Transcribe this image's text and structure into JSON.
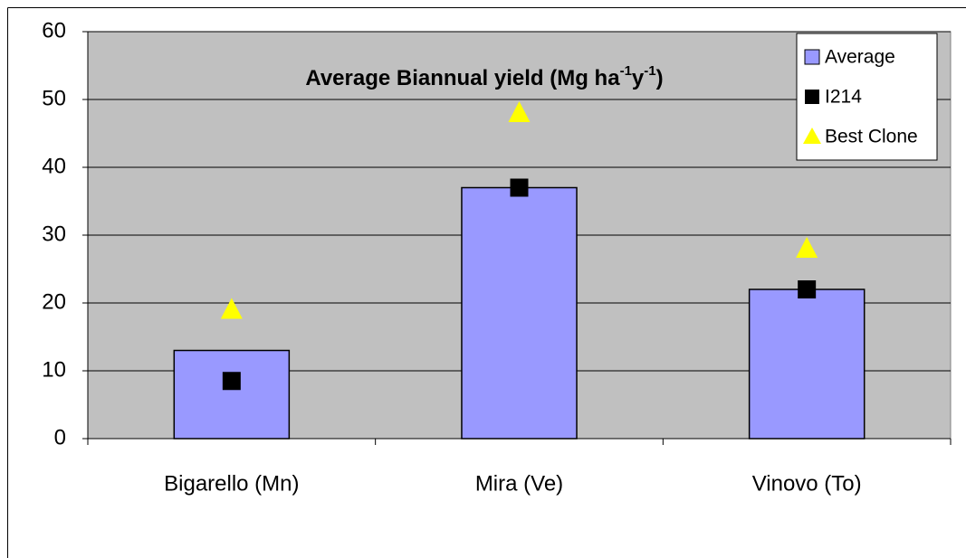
{
  "chart_data": {
    "type": "bar",
    "title_parts": [
      {
        "text": "Average Biannual yield (Mg ha"
      },
      {
        "text": "-1",
        "sup": true
      },
      {
        "text": "y"
      },
      {
        "text": "-1",
        "sup": true
      },
      {
        "text": ")"
      }
    ],
    "categories": [
      "Bigarello (Mn)",
      "Mira (Ve)",
      "Vinovo (To)"
    ],
    "series": [
      {
        "name": "Average",
        "marker": "bar",
        "color": "#9999ff",
        "values": [
          13,
          37,
          22
        ]
      },
      {
        "name": "I214",
        "marker": "square",
        "color": "#000000",
        "values": [
          8.5,
          37,
          22
        ]
      },
      {
        "name": "Best Clone",
        "marker": "triangle",
        "color": "#ffff00",
        "values": [
          19,
          48,
          28
        ]
      }
    ],
    "ylim": [
      0,
      60
    ],
    "yticks": [
      0,
      10,
      20,
      30,
      40,
      50,
      60
    ],
    "grid": true,
    "legend": "top-right",
    "plot_background": "#c0c0c0"
  }
}
